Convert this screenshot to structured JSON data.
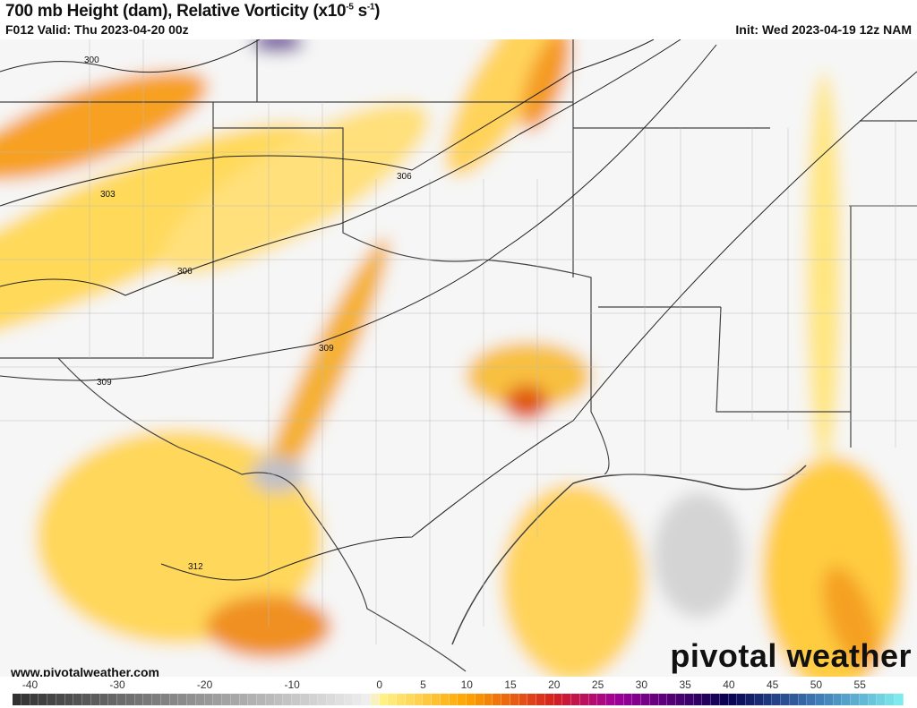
{
  "header": {
    "title_main": "700 mb Height (dam), Relative Vorticity (x10",
    "title_exp1": "-5",
    "title_unit": " s",
    "title_exp2": "-1",
    "title_close": ")",
    "valid": "F012 Valid: Thu 2023-04-20 00z",
    "init": "Init: Wed 2023-04-19 12z NAM"
  },
  "map": {
    "contour_labels": [
      "300",
      "303",
      "306",
      "306",
      "309",
      "309",
      "312"
    ],
    "watermark_url": "www.pivotalweather.com",
    "logo": "pivotal weather"
  },
  "colorbar": {
    "ticks": [
      "-40",
      "-30",
      "-20",
      "-10",
      "0",
      "5",
      "10",
      "15",
      "20",
      "25",
      "30",
      "35",
      "40",
      "45",
      "50",
      "55"
    ],
    "range": [
      -42,
      60
    ],
    "stops": [
      [
        -42,
        "#303030"
      ],
      [
        -1,
        "#f0f0f0"
      ],
      [
        0,
        "#fff58c"
      ],
      [
        10,
        "#ffa500"
      ],
      [
        20,
        "#d42020"
      ],
      [
        27,
        "#a0009a"
      ],
      [
        40,
        "#050050"
      ],
      [
        50,
        "#3c78b4"
      ],
      [
        60,
        "#80f0f0"
      ]
    ]
  }
}
